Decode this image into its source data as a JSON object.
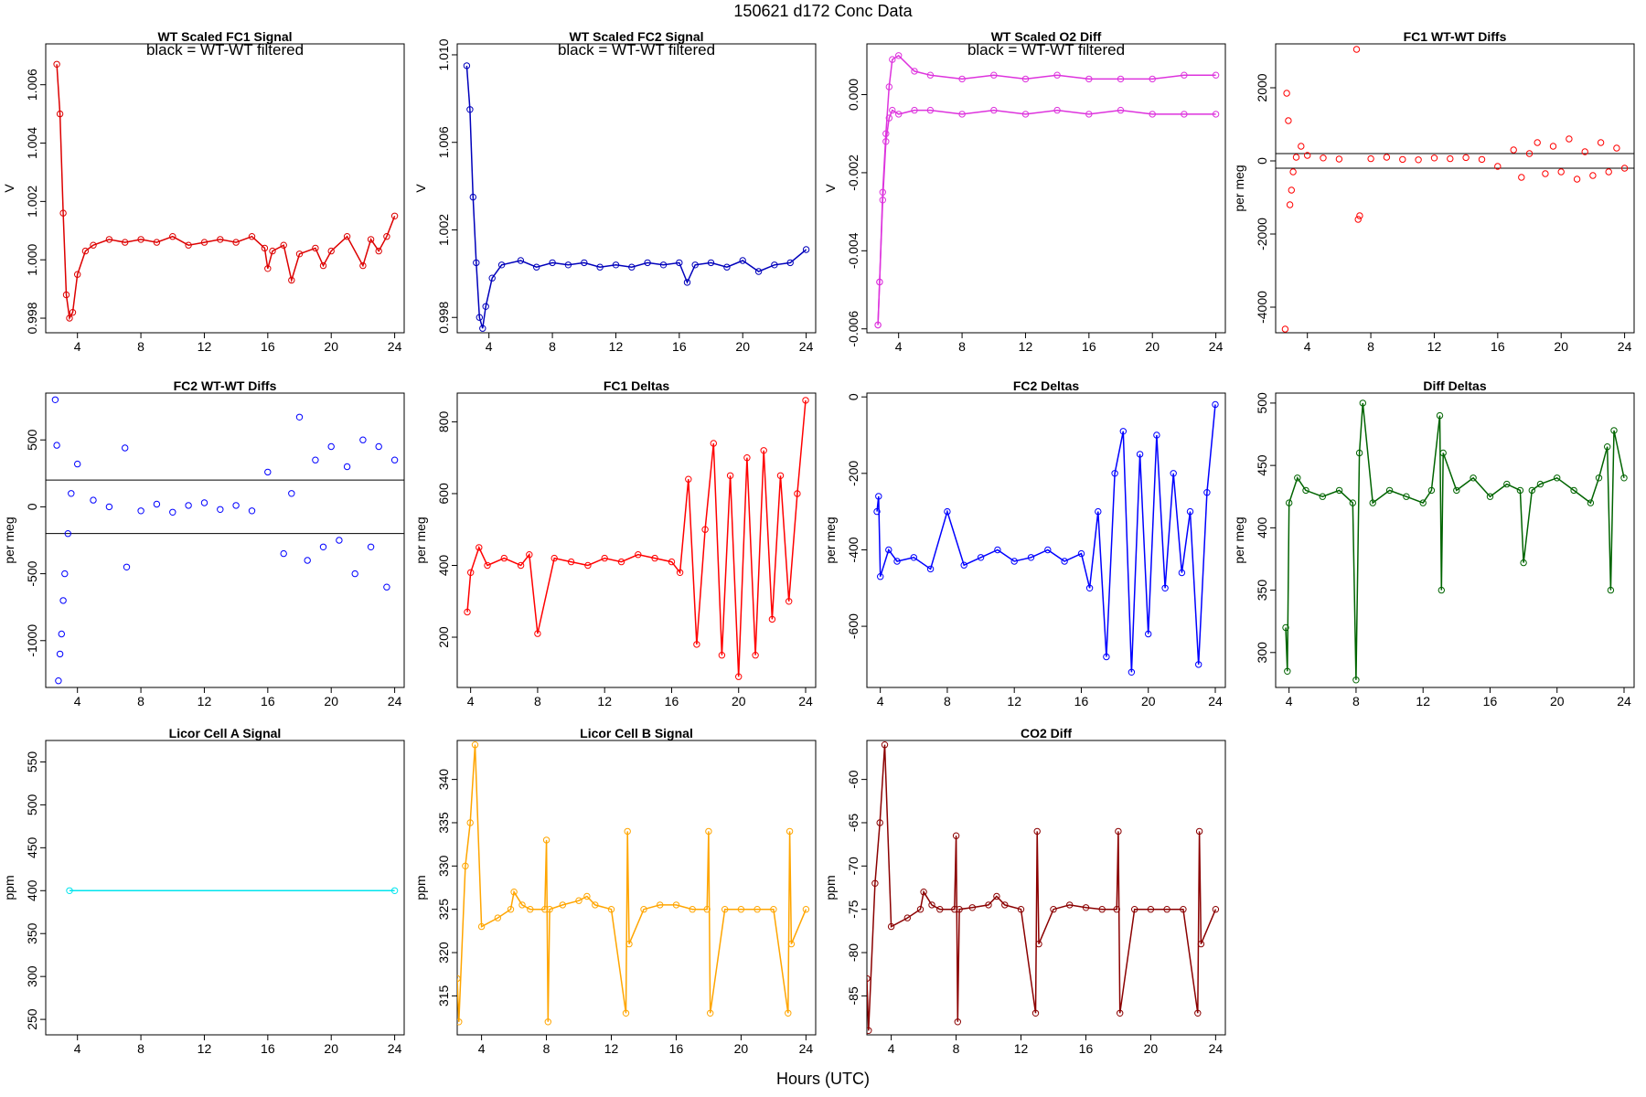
{
  "page": {
    "title": "150621   d172   Conc Data",
    "xlabel": "Hours (UTC)"
  },
  "chart_data": [
    {
      "type": "line",
      "title": "WT Scaled FC1 Signal",
      "annotation": "black = WT-WT filtered",
      "ylabel": "V",
      "color": "#dd0000",
      "ylim": [
        0.9975,
        1.0074
      ],
      "xlim": [
        2,
        24.6
      ],
      "xticks": [
        4,
        8,
        12,
        16,
        20,
        24
      ],
      "yticks": [
        0.998,
        1.0,
        1.002,
        1.004,
        1.006
      ],
      "yticklabels": [
        "0.998",
        "1.000",
        "1.002",
        "1.004",
        "1.006"
      ],
      "series": [
        {
          "x": [
            2.7,
            2.9,
            3.1,
            3.3,
            3.5,
            3.7,
            4.0,
            4.5,
            5.0,
            6.0,
            7.0,
            8.0,
            9.0,
            10.0,
            11.0,
            12.0,
            13.0,
            14.0,
            15.0,
            15.8,
            16.0,
            16.3,
            17.0,
            17.5,
            18.0,
            19.0,
            19.5,
            20.0,
            21.0,
            22.0,
            22.5,
            23.0,
            23.5,
            24.0
          ],
          "y": [
            1.0067,
            1.005,
            1.0016,
            0.9988,
            0.998,
            0.9982,
            0.9995,
            1.0003,
            1.0005,
            1.0007,
            1.0006,
            1.0007,
            1.0006,
            1.0008,
            1.0005,
            1.0006,
            1.0007,
            1.0006,
            1.0008,
            1.0004,
            0.9997,
            1.0003,
            1.0005,
            0.9993,
            1.0002,
            1.0004,
            0.9998,
            1.0003,
            1.0008,
            0.9998,
            1.0007,
            1.0003,
            1.0008,
            1.0015
          ]
        }
      ]
    },
    {
      "type": "line",
      "title": "WT Scaled FC2 Signal",
      "annotation": "black = WT-WT filtered",
      "ylabel": "V",
      "color": "#0000bb",
      "ylim": [
        0.9973,
        1.0105
      ],
      "xlim": [
        2,
        24.6
      ],
      "xticks": [
        4,
        8,
        12,
        16,
        20,
        24
      ],
      "yticks": [
        0.998,
        1.002,
        1.006,
        1.01
      ],
      "yticklabels": [
        "0.998",
        "1.002",
        "1.006",
        "1.010"
      ],
      "series": [
        {
          "x": [
            2.6,
            2.8,
            3.0,
            3.2,
            3.4,
            3.6,
            3.8,
            4.2,
            4.8,
            6.0,
            7.0,
            8.0,
            9.0,
            10.0,
            11.0,
            12.0,
            13.0,
            14.0,
            15.0,
            16.0,
            16.5,
            17.0,
            18.0,
            19.0,
            20.0,
            21.0,
            22.0,
            23.0,
            24.0
          ],
          "y": [
            1.0095,
            1.0075,
            1.0035,
            1.0005,
            0.998,
            0.9975,
            0.9985,
            0.9998,
            1.0004,
            1.0006,
            1.0003,
            1.0005,
            1.0004,
            1.0005,
            1.0003,
            1.0004,
            1.0003,
            1.0005,
            1.0004,
            1.0005,
            0.9996,
            1.0004,
            1.0005,
            1.0003,
            1.0006,
            1.0001,
            1.0004,
            1.0005,
            1.0011
          ]
        }
      ]
    },
    {
      "type": "line",
      "title": "WT Scaled O2 Diff",
      "annotation": "black = WT-WT filtered",
      "ylabel": "V",
      "color": "#dd33dd",
      "ylim": [
        -0.0061,
        0.0013
      ],
      "xlim": [
        2,
        24.6
      ],
      "xticks": [
        4,
        8,
        12,
        16,
        20,
        24
      ],
      "yticks": [
        -0.006,
        -0.004,
        -0.002,
        0.0
      ],
      "yticklabels": [
        "-0.006",
        "-0.004",
        "-0.002",
        "0.000"
      ],
      "series": [
        {
          "x": [
            2.7,
            2.8,
            3.0,
            3.2,
            3.4,
            3.6,
            4.0,
            5.0,
            6.0,
            8.0,
            10.0,
            12.0,
            14.0,
            16.0,
            18.0,
            20.0,
            22.0,
            24.0
          ],
          "y": [
            -0.0059,
            -0.0048,
            -0.0025,
            -0.001,
            0.0002,
            0.0009,
            0.001,
            0.0006,
            0.0005,
            0.0004,
            0.0005,
            0.0004,
            0.0005,
            0.0004,
            0.0004,
            0.0004,
            0.0005,
            0.0005
          ]
        },
        {
          "x": [
            2.7,
            2.8,
            3.0,
            3.2,
            3.4,
            3.6,
            4.0,
            5.0,
            6.0,
            8.0,
            10.0,
            12.0,
            14.0,
            16.0,
            18.0,
            20.0,
            22.0,
            24.0
          ],
          "y": [
            -0.0059,
            -0.0048,
            -0.0027,
            -0.0012,
            -0.0006,
            -0.0004,
            -0.0005,
            -0.0004,
            -0.0004,
            -0.0005,
            -0.0004,
            -0.0005,
            -0.0004,
            -0.0005,
            -0.0004,
            -0.0005,
            -0.0005,
            -0.0005
          ]
        }
      ]
    },
    {
      "type": "scatter",
      "title": "FC1 WT-WT Diffs",
      "ylabel": "per meg",
      "color": "#ff0000",
      "ylim": [
        -4700,
        3200
      ],
      "xlim": [
        2,
        24.6
      ],
      "hlines": [
        200,
        -200
      ],
      "xticks": [
        4,
        8,
        12,
        16,
        20,
        24
      ],
      "yticks": [
        -4000,
        -2000,
        0,
        2000
      ],
      "yticklabels": [
        "-4000",
        "-2000",
        "0",
        "2000"
      ],
      "series": [
        {
          "x": [
            2.6,
            2.7,
            2.8,
            2.9,
            3.0,
            3.1,
            3.3,
            3.6,
            4.0,
            5,
            6,
            7.1,
            7.2,
            7.3,
            8,
            9,
            10,
            11,
            12,
            13,
            14,
            15,
            16,
            17,
            17.5,
            18,
            18.5,
            19,
            19.5,
            20,
            20.5,
            21,
            21.5,
            22,
            22.5,
            23,
            23.5,
            24
          ],
          "y": [
            -4600,
            1850,
            1100,
            -1200,
            -800,
            -300,
            100,
            400,
            150,
            80,
            50,
            3050,
            -1600,
            -1500,
            60,
            100,
            40,
            30,
            80,
            60,
            90,
            40,
            -150,
            300,
            -450,
            200,
            500,
            -350,
            400,
            -300,
            600,
            -500,
            250,
            -400,
            500,
            -300,
            350,
            -200
          ]
        }
      ]
    },
    {
      "type": "scatter",
      "title": "FC2 WT-WT Diffs",
      "ylabel": "per meg",
      "color": "#0000ff",
      "ylim": [
        -1350,
        850
      ],
      "xlim": [
        2,
        24.6
      ],
      "hlines": [
        200,
        -200
      ],
      "xticks": [
        4,
        8,
        12,
        16,
        20,
        24
      ],
      "yticks": [
        -1000,
        -500,
        0,
        500
      ],
      "yticklabels": [
        "-1000",
        "-500",
        "0",
        "500"
      ],
      "series": [
        {
          "x": [
            2.6,
            2.7,
            2.8,
            2.9,
            3.0,
            3.1,
            3.2,
            3.4,
            3.6,
            4.0,
            5,
            6,
            7.0,
            7.1,
            8,
            9,
            10,
            11,
            12,
            13,
            14,
            15,
            16,
            17,
            17.5,
            18,
            18.5,
            19,
            19.5,
            20,
            20.5,
            21,
            21.5,
            22,
            22.5,
            23,
            23.5,
            24
          ],
          "y": [
            800,
            460,
            -1300,
            -1100,
            -950,
            -700,
            -500,
            -200,
            100,
            320,
            50,
            0,
            440,
            -450,
            -30,
            20,
            -40,
            10,
            30,
            -20,
            10,
            -30,
            260,
            -350,
            100,
            670,
            -400,
            350,
            -300,
            450,
            -250,
            300,
            -500,
            500,
            -300,
            450,
            -600,
            350
          ]
        }
      ]
    },
    {
      "type": "line",
      "title": "FC1 Deltas",
      "ylabel": "per meg",
      "color": "#ff0000",
      "ylim": [
        60,
        880
      ],
      "xlim": [
        3.2,
        24.6
      ],
      "xticks": [
        4,
        8,
        12,
        16,
        20,
        24
      ],
      "yticks": [
        200,
        400,
        600,
        800
      ],
      "yticklabels": [
        "200",
        "400",
        "600",
        "800"
      ],
      "series": [
        {
          "x": [
            3.8,
            4.0,
            4.5,
            5,
            6,
            7,
            7.5,
            8,
            9,
            10,
            11,
            12,
            13,
            14,
            15,
            16,
            16.5,
            17,
            17.5,
            18,
            18.5,
            19,
            19.5,
            20,
            20.5,
            21,
            21.5,
            22,
            22.5,
            23,
            23.5,
            24
          ],
          "y": [
            270,
            380,
            450,
            400,
            420,
            400,
            430,
            210,
            420,
            410,
            400,
            420,
            410,
            430,
            420,
            410,
            380,
            640,
            180,
            500,
            740,
            150,
            650,
            90,
            700,
            150,
            720,
            250,
            650,
            300,
            600,
            860
          ]
        }
      ]
    },
    {
      "type": "line",
      "title": "FC2 Deltas",
      "ylabel": "per meg",
      "color": "#0000ff",
      "ylim": [
        -760,
        10
      ],
      "xlim": [
        3.2,
        24.6
      ],
      "xticks": [
        4,
        8,
        12,
        16,
        20,
        24
      ],
      "yticks": [
        -600,
        -400,
        -200,
        0
      ],
      "yticklabels": [
        "-600",
        "-400",
        "-200",
        "0"
      ],
      "series": [
        {
          "x": [
            3.8,
            3.9,
            4.0,
            4.5,
            5,
            6,
            7,
            8,
            9,
            10,
            11,
            12,
            13,
            14,
            15,
            16,
            16.5,
            17,
            17.5,
            18,
            18.5,
            19,
            19.5,
            20,
            20.5,
            21,
            21.5,
            22,
            22.5,
            23,
            23.5,
            24
          ],
          "y": [
            -300,
            -260,
            -470,
            -400,
            -430,
            -420,
            -450,
            -300,
            -440,
            -420,
            -400,
            -430,
            -420,
            -400,
            -430,
            -410,
            -500,
            -300,
            -680,
            -200,
            -90,
            -720,
            -150,
            -620,
            -100,
            -500,
            -200,
            -460,
            -300,
            -700,
            -250,
            -20
          ]
        }
      ]
    },
    {
      "type": "line",
      "title": "Diff Deltas",
      "ylabel": "per meg",
      "color": "#006400",
      "ylim": [
        272,
        508
      ],
      "xlim": [
        3.2,
        24.6
      ],
      "xticks": [
        4,
        8,
        12,
        16,
        20,
        24
      ],
      "yticks": [
        300,
        350,
        400,
        450,
        500
      ],
      "yticklabels": [
        "300",
        "350",
        "400",
        "450",
        "500"
      ],
      "series": [
        {
          "x": [
            3.8,
            3.9,
            4.0,
            4.5,
            5,
            6,
            7,
            7.8,
            8.0,
            8.2,
            8.4,
            9,
            10,
            11,
            12,
            12.5,
            13.0,
            13.1,
            13.2,
            14,
            15,
            16,
            17,
            17.8,
            18.0,
            18.5,
            19,
            20,
            21,
            22,
            22.5,
            23,
            23.2,
            23.4,
            24
          ],
          "y": [
            320,
            285,
            420,
            440,
            430,
            425,
            430,
            420,
            278,
            460,
            500,
            420,
            430,
            425,
            420,
            430,
            490,
            350,
            460,
            430,
            440,
            425,
            435,
            430,
            372,
            430,
            435,
            440,
            430,
            420,
            440,
            465,
            350,
            478,
            440
          ]
        }
      ]
    },
    {
      "type": "line",
      "title": "Licor Cell A Signal",
      "ylabel": "ppm",
      "color": "#00e5ee",
      "ylim": [
        232,
        575
      ],
      "xlim": [
        2,
        24.6
      ],
      "xticks": [
        4,
        8,
        12,
        16,
        20,
        24
      ],
      "yticks": [
        250,
        300,
        350,
        400,
        450,
        500,
        550
      ],
      "yticklabels": [
        "250",
        "300",
        "350",
        "400",
        "450",
        "500",
        "550"
      ],
      "series": [
        {
          "x": [
            3.5,
            24
          ],
          "y": [
            400,
            400
          ]
        }
      ]
    },
    {
      "type": "line",
      "title": "Licor Cell B Signal",
      "ylabel": "ppm",
      "color": "#ffa500",
      "ylim": [
        310.5,
        344.5
      ],
      "xlim": [
        2.5,
        24.6
      ],
      "xticks": [
        4,
        8,
        12,
        16,
        20,
        24
      ],
      "yticks": [
        315,
        320,
        325,
        330,
        335,
        340
      ],
      "yticklabels": [
        "315",
        "320",
        "325",
        "330",
        "335",
        "340"
      ],
      "series": [
        {
          "x": [
            2.5,
            2.6,
            3.0,
            3.3,
            3.6,
            4.0,
            5,
            5.8,
            6.0,
            6.5,
            7,
            7.9,
            8.0,
            8.1,
            8.2,
            9,
            10,
            10.5,
            11,
            12,
            12.9,
            13.0,
            13.1,
            14,
            15,
            16,
            17,
            17.9,
            18.0,
            18.1,
            19,
            20,
            21,
            22,
            22.9,
            23.0,
            23.1,
            24
          ],
          "y": [
            317,
            312,
            330,
            335,
            344,
            323,
            324,
            325,
            327,
            325.5,
            325,
            325,
            333,
            312,
            325,
            325.5,
            326,
            326.5,
            325.5,
            325,
            313,
            334,
            321,
            325,
            325.5,
            325.5,
            325,
            325,
            334,
            313,
            325,
            325,
            325,
            325,
            313,
            334,
            321,
            325
          ]
        }
      ]
    },
    {
      "type": "line",
      "title": "CO2 Diff",
      "ylabel": "ppm",
      "color": "#8b0000",
      "ylim": [
        -89.5,
        -55.5
      ],
      "xlim": [
        2.5,
        24.6
      ],
      "xticks": [
        4,
        8,
        12,
        16,
        20,
        24
      ],
      "yticks": [
        -85,
        -80,
        -75,
        -70,
        -65,
        -60
      ],
      "yticklabels": [
        "-85",
        "-80",
        "-75",
        "-70",
        "-65",
        "-60"
      ],
      "series": [
        {
          "x": [
            2.5,
            2.6,
            3.0,
            3.3,
            3.6,
            4.0,
            5,
            5.8,
            6.0,
            6.5,
            7,
            7.9,
            8.0,
            8.1,
            8.2,
            9,
            10,
            10.5,
            11,
            12,
            12.9,
            13.0,
            13.1,
            14,
            15,
            16,
            17,
            17.9,
            18.0,
            18.1,
            19,
            20,
            21,
            22,
            22.9,
            23.0,
            23.1,
            24
          ],
          "y": [
            -83,
            -89,
            -72,
            -65,
            -56,
            -77,
            -76,
            -75,
            -73,
            -74.5,
            -75,
            -75,
            -66.5,
            -88,
            -75,
            -74.8,
            -74.5,
            -73.5,
            -74.5,
            -75,
            -87,
            -66,
            -79,
            -75,
            -74.5,
            -74.8,
            -75,
            -75,
            -66,
            -87,
            -75,
            -75,
            -75,
            -75,
            -87,
            -66,
            -79,
            -75
          ]
        }
      ]
    }
  ]
}
